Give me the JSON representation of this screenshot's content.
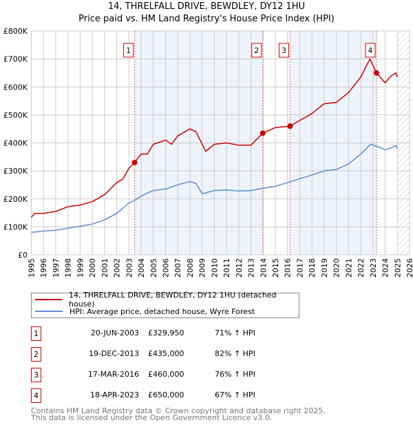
{
  "title": "14, THRELFALL DRIVE, BEWDLEY, DY12 1HU",
  "subtitle": "Price paid vs. HM Land Registry's House Price Index (HPI)",
  "chart_data": {
    "type": "line",
    "title": "14, THRELFALL DRIVE, BEWDLEY, DY12 1HU — Price paid vs. HM Land Registry's House Price Index (HPI)",
    "xlabel": "",
    "ylabel": "",
    "xlim": [
      1995,
      2026
    ],
    "ylim": [
      0,
      800000
    ],
    "x_ticks": [
      "1995",
      "1996",
      "1997",
      "1998",
      "1999",
      "2000",
      "2001",
      "2002",
      "2003",
      "2004",
      "2005",
      "2006",
      "2007",
      "2008",
      "2009",
      "2010",
      "2011",
      "2012",
      "2013",
      "2014",
      "2015",
      "2016",
      "2017",
      "2018",
      "2019",
      "2020",
      "2021",
      "2022",
      "2023",
      "2024",
      "2025",
      "2026"
    ],
    "y_ticks": [
      "£0",
      "£100K",
      "£200K",
      "£300K",
      "£400K",
      "£500K",
      "£600K",
      "£700K",
      "£800K"
    ],
    "grid": true,
    "legend_position": "below",
    "colors": {
      "property": "#cc0000",
      "hpi": "#5b8fd4",
      "shade": "#eef3fc",
      "marker_line": "#e06060"
    },
    "series": [
      {
        "name": "14, THRELFALL DRIVE, BEWDLEY, DY12 1HU (detached house)",
        "x": [
          1995,
          1995.3,
          1996,
          1997,
          1998,
          1999,
          2000,
          2001,
          2002,
          2002.5,
          2003,
          2003.47,
          2004,
          2004.5,
          2005,
          2006,
          2006.5,
          2007,
          2008,
          2008.5,
          2009,
          2009.3,
          2010,
          2011,
          2012,
          2013,
          2013.97,
          2014.5,
          2015,
          2016.2,
          2017,
          2018,
          2019,
          2020,
          2021,
          2022,
          2022.75,
          2023.3,
          2024,
          2024.5,
          2024.9,
          2025
        ],
        "y": [
          135000,
          148000,
          148000,
          155000,
          172000,
          178000,
          190000,
          215000,
          258000,
          270000,
          310000,
          330000,
          360000,
          360000,
          395000,
          410000,
          395000,
          425000,
          450000,
          440000,
          395000,
          370000,
          395000,
          400000,
          392000,
          392000,
          435000,
          445000,
          455000,
          460000,
          480000,
          505000,
          540000,
          545000,
          580000,
          635000,
          700000,
          650000,
          615000,
          640000,
          650000,
          635000
        ]
      },
      {
        "name": "HPI: Average price, detached house, Wyre Forest",
        "x": [
          1995,
          1996,
          1997,
          1998,
          1999,
          2000,
          2001,
          2002,
          2003,
          2003.5,
          2004,
          2005,
          2006,
          2007,
          2008,
          2008.5,
          2009,
          2010,
          2011,
          2012,
          2013,
          2014,
          2015,
          2016,
          2017,
          2018,
          2019,
          2020,
          2021,
          2022,
          2022.8,
          2023.5,
          2024,
          2024.9,
          2025
        ],
        "y": [
          80000,
          85000,
          88000,
          95000,
          102000,
          110000,
          125000,
          148000,
          185000,
          195000,
          210000,
          230000,
          235000,
          250000,
          262000,
          255000,
          218000,
          230000,
          232000,
          228000,
          230000,
          238000,
          245000,
          258000,
          272000,
          285000,
          300000,
          305000,
          325000,
          360000,
          395000,
          385000,
          375000,
          390000,
          380000
        ]
      }
    ],
    "sales": [
      {
        "label": "1",
        "x": 2003.47,
        "y": 329950
      },
      {
        "label": "2",
        "x": 2013.97,
        "y": 435000
      },
      {
        "label": "3",
        "x": 2016.21,
        "y": 460000
      },
      {
        "label": "4",
        "x": 2023.29,
        "y": 650000
      }
    ]
  },
  "legend": {
    "property": "14, THRELFALL DRIVE, BEWDLEY, DY12 1HU (detached house)",
    "hpi": "HPI: Average price, detached house, Wyre Forest"
  },
  "table": [
    {
      "num": "1",
      "date": "20-JUN-2003",
      "price": "£329,950",
      "hpi": "71% ↑ HPI"
    },
    {
      "num": "2",
      "date": "19-DEC-2013",
      "price": "£435,000",
      "hpi": "82% ↑ HPI"
    },
    {
      "num": "3",
      "date": "17-MAR-2016",
      "price": "£460,000",
      "hpi": "76% ↑ HPI"
    },
    {
      "num": "4",
      "date": "18-APR-2023",
      "price": "£650,000",
      "hpi": "67% ↑ HPI"
    }
  ],
  "footer": {
    "line1": "Contains HM Land Registry data © Crown copyright and database right 2025.",
    "line2": "This data is licensed under the Open Government Licence v3.0."
  }
}
